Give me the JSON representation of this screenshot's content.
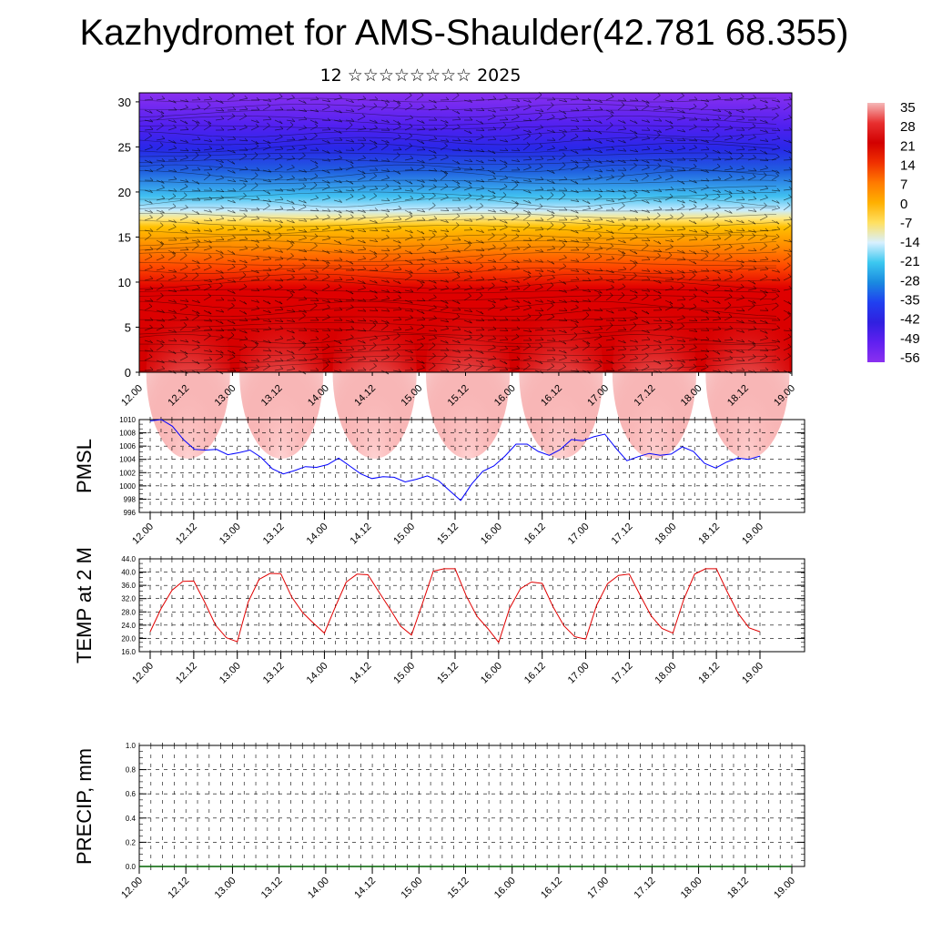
{
  "header": {
    "title": "Kazhydromet for AMS-Shaulder(42.781 68.355)",
    "subtitle": "12 ☆☆☆☆☆☆☆☆ 2025"
  },
  "time_ticks": [
    "12.00",
    "12.12",
    "13.00",
    "13.12",
    "14.00",
    "14.12",
    "15.00",
    "15.12",
    "16.00",
    "16.12",
    "17.00",
    "17.12",
    "18.00",
    "18.12",
    "19.00"
  ],
  "chart_data": [
    {
      "id": "cross-section",
      "type": "heatmap",
      "description_free": true,
      "x": [
        "12.00",
        "12.12",
        "13.00",
        "13.12",
        "14.00",
        "14.12",
        "15.00",
        "15.12",
        "16.00",
        "16.12",
        "17.00",
        "17.12",
        "18.00",
        "18.12",
        "19.00"
      ],
      "y_ticks": [
        0,
        5,
        10,
        15,
        20,
        25,
        30
      ],
      "ylim": [
        0,
        31
      ],
      "colorbar": {
        "labels": [
          "35",
          "28",
          "21",
          "14",
          "7",
          "0",
          "-7",
          "-14",
          "-21",
          "-28",
          "-35",
          "-42",
          "-49",
          "-56"
        ],
        "colors": [
          "#f5b8b8",
          "#e83030",
          "#d20000",
          "#f03000",
          "#ff7a00",
          "#ffb000",
          "#ffe060",
          "#d8f0ff",
          "#3cc8f0",
          "#1a8ae0",
          "#2040f0",
          "#3020e0",
          "#6020f0",
          "#8a30f0"
        ]
      }
    },
    {
      "id": "pmsl",
      "type": "line",
      "ylabel": "PMSL",
      "ylim": [
        996,
        1010
      ],
      "yticks": [
        "996",
        "998",
        "1000",
        "1002",
        "1004",
        "1006",
        "1008",
        "1010"
      ],
      "color": "#0000ff",
      "values": [
        1009.8,
        1010.0,
        1009.0,
        1007.0,
        1005.5,
        1005.4,
        1005.5,
        1004.7,
        1005.0,
        1005.4,
        1004.3,
        1002.6,
        1001.8,
        1002.3,
        1002.9,
        1002.8,
        1003.2,
        1004.2,
        1003.0,
        1001.8,
        1001.1,
        1001.4,
        1001.3,
        1000.6,
        1001.0,
        1001.5,
        1000.8,
        999.3,
        997.8,
        1000.3,
        1002.2,
        1003.0,
        1004.5,
        1006.3,
        1006.3,
        1005.2,
        1004.6,
        1005.5,
        1007.0,
        1006.8,
        1007.4,
        1007.8,
        1005.7,
        1003.8,
        1004.4,
        1004.9,
        1004.6,
        1004.8,
        1005.9,
        1005.2,
        1003.4,
        1002.7,
        1003.6,
        1004.2,
        1004.0,
        1004.5
      ]
    },
    {
      "id": "temp2m",
      "type": "line",
      "ylabel": "TEMP at 2 M",
      "ylim": [
        16,
        44
      ],
      "yticks": [
        "16.0",
        "20.0",
        "24.0",
        "28.0",
        "32.0",
        "36.0",
        "40.0",
        "44.0"
      ],
      "color": "#e00000",
      "values": [
        22.0,
        29.0,
        34.5,
        37.2,
        37.3,
        31.0,
        24.0,
        20.2,
        19.0,
        31.0,
        37.8,
        39.6,
        39.5,
        32.5,
        27.8,
        24.6,
        21.6,
        29.5,
        37.0,
        39.4,
        39.2,
        34.0,
        29.0,
        23.7,
        21.0,
        30.5,
        40.3,
        41.0,
        41.0,
        33.0,
        26.7,
        23.0,
        18.8,
        29.0,
        35.0,
        37.0,
        36.6,
        29.5,
        23.8,
        20.5,
        19.8,
        30.0,
        36.5,
        39.0,
        39.4,
        33.0,
        26.8,
        23.0,
        21.6,
        31.8,
        39.4,
        41.0,
        41.0,
        34.0,
        27.5,
        23.2,
        22.0
      ]
    },
    {
      "id": "precip",
      "type": "line",
      "ylabel": "PRECIP, mm",
      "ylim": [
        0,
        1
      ],
      "yticks": [
        "0.0",
        "0.2",
        "0.4",
        "0.6",
        "0.8",
        "1.0"
      ],
      "color": "#006400",
      "values": [
        0,
        0,
        0,
        0,
        0,
        0,
        0,
        0,
        0,
        0,
        0,
        0,
        0,
        0,
        0,
        0,
        0,
        0,
        0,
        0,
        0,
        0,
        0,
        0,
        0,
        0,
        0,
        0,
        0,
        0,
        0,
        0,
        0,
        0,
        0,
        0,
        0,
        0,
        0,
        0,
        0,
        0,
        0,
        0,
        0,
        0,
        0,
        0,
        0,
        0,
        0,
        0,
        0,
        0,
        0,
        0,
        0
      ]
    }
  ]
}
